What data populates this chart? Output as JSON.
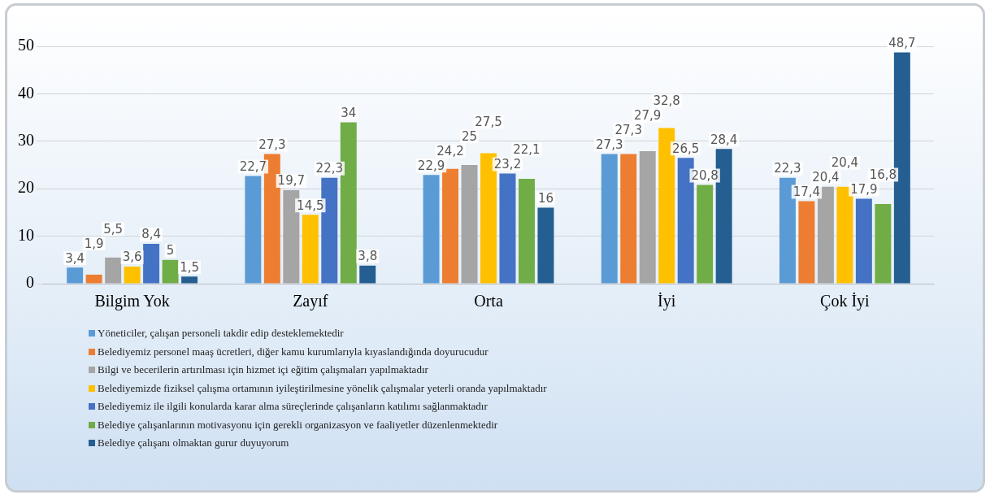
{
  "chart_data": {
    "type": "bar",
    "categories": [
      "Bilgim Yok",
      "Zayıf",
      "Orta",
      "İyi",
      "Çok İyi"
    ],
    "ylim": [
      0,
      50
    ],
    "yticks": [
      0,
      10,
      20,
      30,
      40,
      50
    ],
    "grid": "y",
    "legend": "bottom",
    "series": [
      {
        "name": "Yöneticiler, çalışan personeli takdir edip desteklemektedir",
        "color": "#5b9bd5",
        "values": [
          3.4,
          22.7,
          22.9,
          27.3,
          22.3
        ],
        "value_labels": [
          "3,4",
          "22,7",
          "22,9",
          "27,3",
          "22,3"
        ]
      },
      {
        "name": "Belediyemiz personel maaş ücretleri, diğer kamu kurumlarıyla kıyaslandığında doyurucudur",
        "color": "#ed7d31",
        "values": [
          1.9,
          27.3,
          24.2,
          27.3,
          17.4
        ],
        "value_labels": [
          "1,9",
          "27,3",
          "24,2",
          "27,3",
          "17,4"
        ]
      },
      {
        "name": "Bilgi ve becerilerin artırılması için hizmet içi eğitim çalışmaları yapılmaktadır",
        "color": "#a5a5a5",
        "values": [
          5.5,
          19.7,
          25,
          27.9,
          20.4
        ],
        "value_labels": [
          "5,5",
          "19,7",
          "25",
          "27,9",
          "20,4"
        ]
      },
      {
        "name": "Belediyemizde fiziksel çalışma ortamının iyileştirilmesine yönelik çalışmalar yeterli oranda yapılmaktadır",
        "color": "#ffc000",
        "values": [
          3.6,
          14.5,
          27.5,
          32.8,
          20.4
        ],
        "value_labels": [
          "3,6",
          "14,5",
          "27,5",
          "32,8",
          "20,4"
        ]
      },
      {
        "name": "Belediyemiz ile ilgili konularda karar alma süreçlerinde çalışanların katılımı sağlanmaktadır",
        "color": "#4472c4",
        "values": [
          8.4,
          22.3,
          23.2,
          26.5,
          17.9
        ],
        "value_labels": [
          "8,4",
          "22,3",
          "23,2",
          "26,5",
          "17,9"
        ]
      },
      {
        "name": "Belediye çalışanlarının motivasyonu için gerekli organizasyon ve faaliyetler düzenlenmektedir",
        "color": "#70ad47",
        "values": [
          5,
          34,
          22.1,
          20.8,
          16.8
        ],
        "value_labels": [
          "5",
          "34",
          "22,1",
          "20,8",
          "16,8"
        ]
      },
      {
        "name": "Belediye çalışanı olmaktan gurur duyuyorum",
        "color": "#255e91",
        "values": [
          1.5,
          3.8,
          16,
          28.4,
          48.7
        ],
        "value_labels": [
          "1,5",
          "3,8",
          "16",
          "28,4",
          "48,7"
        ]
      }
    ]
  }
}
